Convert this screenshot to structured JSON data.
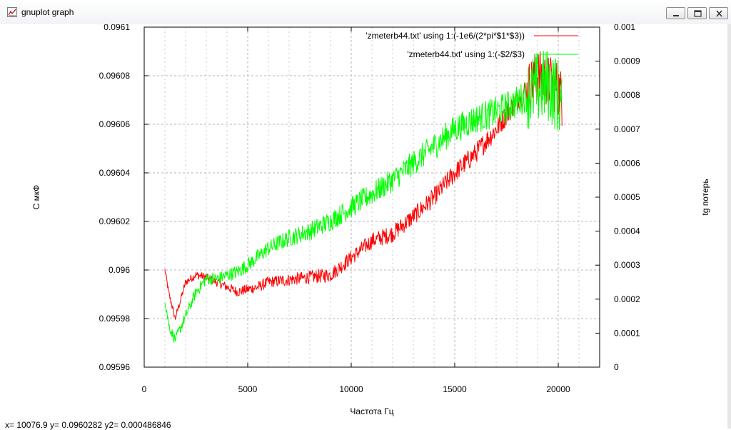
{
  "window": {
    "title": "gnuplot graph",
    "controls": [
      "minimize",
      "maximize",
      "close"
    ]
  },
  "status_bar": {
    "text": "x= 10076.9 y= 0.0960282 y2= 0.000486846"
  },
  "colors": {
    "series_red": "#ff0000",
    "series_green": "#00ff00",
    "grid": "#b4b4b4"
  },
  "chart_data": {
    "type": "line",
    "xlabel": "Частота Гц",
    "ylabel": "С мкФ",
    "y2label": "tg потерь",
    "xlim": [
      0,
      22000
    ],
    "ylim": [
      0.09596,
      0.0961
    ],
    "y2lim": [
      0,
      0.001
    ],
    "grid": true,
    "legend_position": "top-right",
    "x_ticks": [
      "0",
      "5000",
      "10000",
      "15000",
      "20000"
    ],
    "y_ticks": [
      "0.09596",
      "0.09598",
      "0.096",
      "0.09602",
      "0.09604",
      "0.09606",
      "0.09608",
      "0.0961"
    ],
    "y2_ticks": [
      "0",
      "0.0001",
      "0.0002",
      "0.0003",
      "0.0004",
      "0.0005",
      "0.0006",
      "0.0007",
      "0.0008",
      "0.0009",
      "0.001"
    ],
    "series": [
      {
        "name": "'zmeterb44.txt' using 1:(-1e6/(2*pi*$1*$3))",
        "axis": "y",
        "color": "#ff0000",
        "x": [
          1000,
          1200,
          1500,
          2000,
          2500,
          3000,
          3500,
          4000,
          4500,
          5000,
          5500,
          6000,
          7000,
          8000,
          9000,
          10000,
          11000,
          12000,
          13000,
          14000,
          15000,
          16000,
          17000,
          18000,
          18500,
          19000,
          19500,
          20000,
          20200
        ],
        "y": [
          0.096,
          0.09599,
          0.09598,
          0.095995,
          0.095998,
          0.095997,
          0.095995,
          0.095993,
          0.095991,
          0.095992,
          0.095993,
          0.095995,
          0.095996,
          0.095997,
          0.095998,
          0.096005,
          0.096012,
          0.096015,
          0.096022,
          0.09603,
          0.09604,
          0.096048,
          0.096058,
          0.09607,
          0.096075,
          0.09608,
          0.096078,
          0.096075,
          0.09607
        ]
      },
      {
        "name": "'zmeterb44.txt' using 1:(-$2/$3)",
        "axis": "y2",
        "color": "#00ff00",
        "x": [
          1000,
          1200,
          1500,
          2000,
          2500,
          3000,
          3500,
          4000,
          4500,
          5000,
          6000,
          7000,
          8000,
          9000,
          10000,
          11000,
          12000,
          13000,
          14000,
          15000,
          16000,
          17000,
          18000,
          18500,
          19000,
          19500,
          20000,
          20200
        ],
        "y": [
          0.0002,
          0.00012,
          8e-05,
          0.00015,
          0.00022,
          0.00026,
          0.00026,
          0.00027,
          0.00028,
          0.0003,
          0.00035,
          0.00038,
          0.0004,
          0.00043,
          0.00047,
          0.00051,
          0.00055,
          0.0006,
          0.00065,
          0.0007,
          0.00073,
          0.00075,
          0.00078,
          0.0008,
          0.00082,
          0.00083,
          0.0008,
          0.00075
        ]
      }
    ]
  }
}
